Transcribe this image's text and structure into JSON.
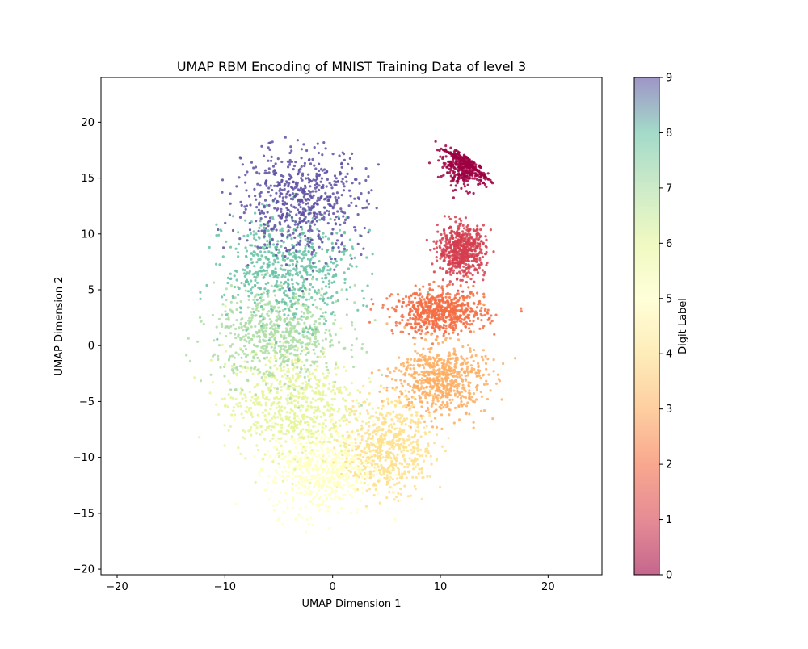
{
  "chart_data": {
    "type": "scatter",
    "title": "UMAP RBM Encoding of MNIST Training Data of level 3",
    "xlabel": "UMAP Dimension 1",
    "ylabel": "UMAP Dimension 2",
    "xlim": [
      -21.5,
      25
    ],
    "ylim": [
      -20.5,
      24
    ],
    "xticks": [
      -20,
      -10,
      0,
      10,
      20
    ],
    "yticks": [
      -20,
      -15,
      -10,
      -5,
      0,
      5,
      10,
      15,
      20
    ],
    "xtick_labels": [
      "−20",
      "−10",
      "0",
      "10",
      "20"
    ],
    "ytick_labels": [
      "−20",
      "−15",
      "−10",
      "−5",
      "0",
      "5",
      "10",
      "15",
      "20"
    ],
    "grid": false,
    "colorbar": {
      "label": "Digit Label",
      "range": [
        0,
        9
      ],
      "ticks": [
        0,
        1,
        2,
        3,
        4,
        5,
        6,
        7,
        8,
        9
      ],
      "tick_labels": [
        "0",
        "1",
        "2",
        "3",
        "4",
        "5",
        "6",
        "7",
        "8",
        "9"
      ],
      "colormap": "Spectral",
      "alpha": 0.6
    },
    "clusters": [
      {
        "digit": 0,
        "color": "#9e0142",
        "center": [
          12.5,
          16.5
        ],
        "spread": [
          1.8,
          1.8
        ],
        "count": 600
      },
      {
        "digit": 1,
        "color": "#d53e4f",
        "center": [
          12,
          8.5
        ],
        "spread": [
          1.8,
          1.8
        ],
        "count": 600
      },
      {
        "digit": 2,
        "color": "#f46d43",
        "center": [
          10,
          3
        ],
        "spread": [
          3.5,
          1.6
        ],
        "count": 650
      },
      {
        "digit": 3,
        "color": "#fdae61",
        "center": [
          10,
          -3
        ],
        "spread": [
          3.5,
          2.6
        ],
        "count": 650
      },
      {
        "digit": 4,
        "color": "#fee08b",
        "center": [
          5,
          -9
        ],
        "spread": [
          3.5,
          3.5
        ],
        "count": 600
      },
      {
        "digit": 5,
        "color": "#ffffbf",
        "center": [
          -1,
          -11
        ],
        "spread": [
          4,
          3.5
        ],
        "count": 600
      },
      {
        "digit": 6,
        "color": "#e6f598",
        "center": [
          -4,
          -5
        ],
        "spread": [
          5,
          4
        ],
        "count": 650
      },
      {
        "digit": 7,
        "color": "#abdda4",
        "center": [
          -5,
          1
        ],
        "spread": [
          5,
          3.5
        ],
        "count": 650
      },
      {
        "digit": 8,
        "color": "#66c2a5",
        "center": [
          -4,
          7
        ],
        "spread": [
          5,
          4
        ],
        "count": 600
      },
      {
        "digit": 9,
        "color": "#5e4fa2",
        "center": [
          -3,
          13
        ],
        "spread": [
          5,
          4
        ],
        "count": 600
      }
    ]
  }
}
